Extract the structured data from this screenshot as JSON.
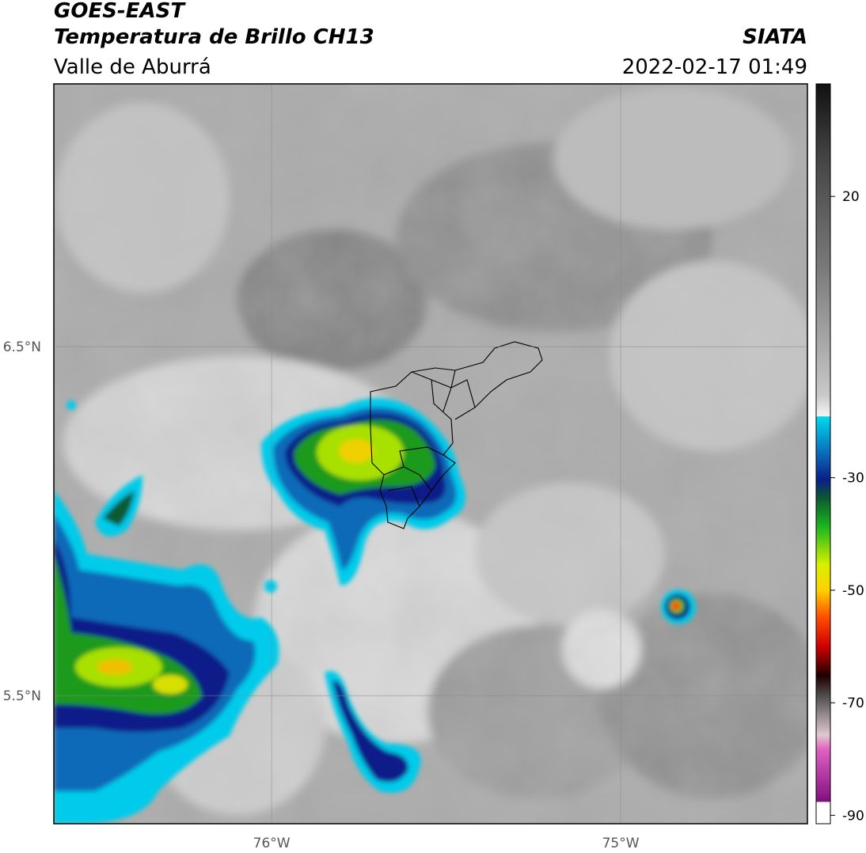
{
  "header": {
    "satellite": "GOES-EAST",
    "product": "Temperatura de Brillo CH13",
    "region": "Valle de Aburrá",
    "agency": "SIATA",
    "datetime": "2022-02-17 01:49"
  },
  "map": {
    "lon_extent": [
      -76.624,
      -74.465
    ],
    "lat_extent": [
      5.133,
      7.253
    ],
    "lon_ticks": [
      {
        "value": -76,
        "label": "76°W"
      },
      {
        "value": -75,
        "label": "75°W"
      }
    ],
    "lat_ticks": [
      {
        "value": 6.5,
        "label": "6.5°N"
      },
      {
        "value": 5.5,
        "label": "5.5°N"
      }
    ],
    "grid": true
  },
  "colorbar": {
    "range": [
      -91.5,
      40
    ],
    "ticks": [
      20,
      -30,
      -50,
      -70,
      -90
    ]
  }
}
